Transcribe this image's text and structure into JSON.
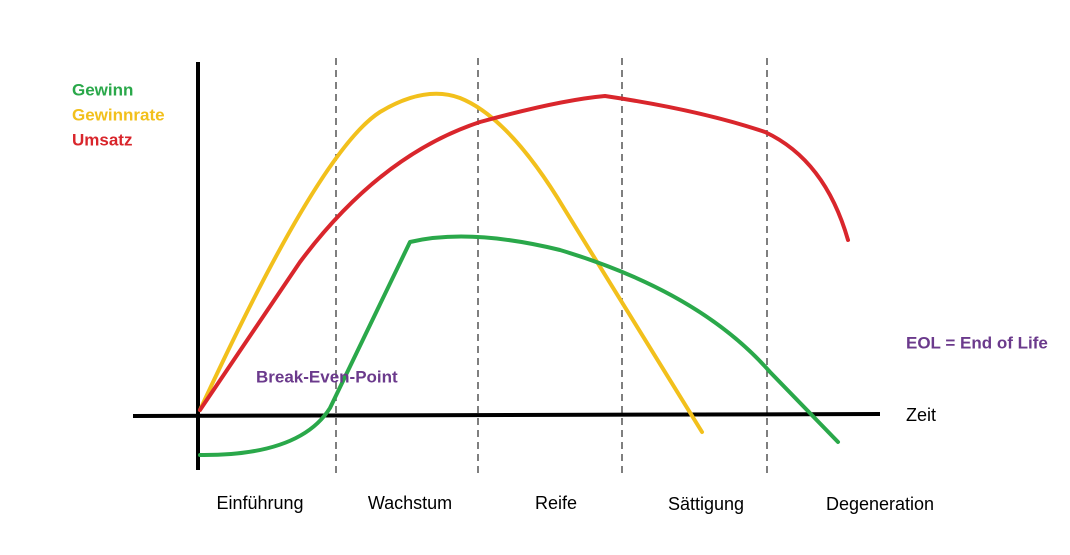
{
  "legend": [
    {
      "label": "Gewinn"
    },
    {
      "label": "Gewinnrate"
    },
    {
      "label": "Umsatz"
    }
  ],
  "axis": {
    "x_label": "Zeit"
  },
  "phases": [
    {
      "label": "Einführung"
    },
    {
      "label": "Wachstum"
    },
    {
      "label": "Reife"
    },
    {
      "label": "Sättigung"
    },
    {
      "label": "Degeneration"
    }
  ],
  "annotations": [
    {
      "label": "Break-Even-Point"
    },
    {
      "label": "EOL = End of Life"
    }
  ]
}
